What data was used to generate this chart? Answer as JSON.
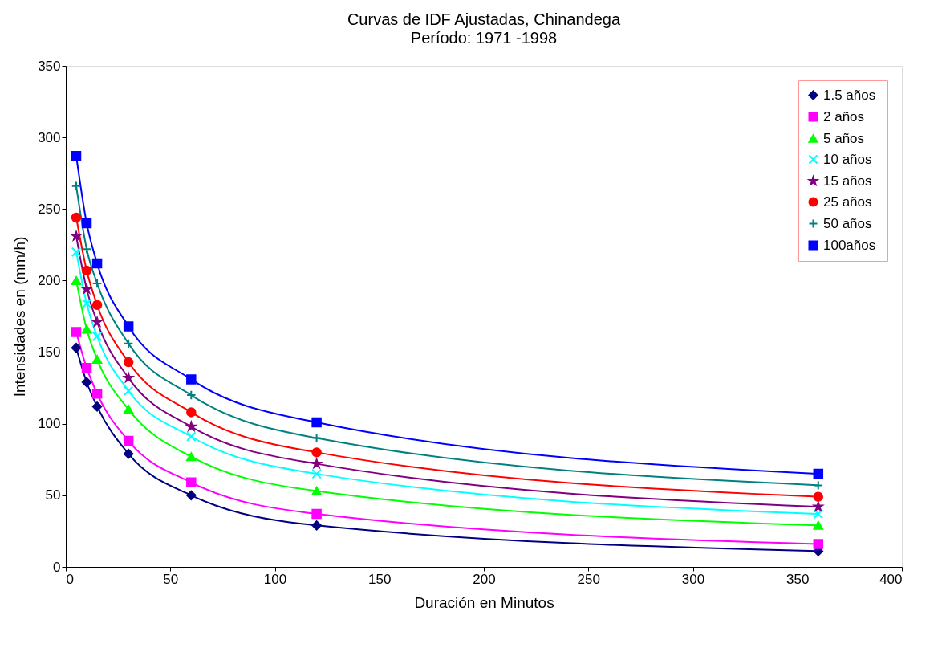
{
  "chart_data": {
    "type": "line",
    "title": "Curvas de IDF Ajustadas, Chinandega",
    "subtitle": "Período: 1971 -1998",
    "xlabel": "Duración en Minutos",
    "ylabel": "Intensidades en (mm/h)",
    "x": [
      5,
      10,
      15,
      30,
      60,
      120,
      360
    ],
    "series": [
      {
        "name": "1.5 años",
        "color": "#000080",
        "marker": "diamond",
        "values": [
          153,
          129,
          112,
          79,
          50,
          29,
          11
        ]
      },
      {
        "name": "2     años",
        "color": "#ff00ff",
        "marker": "square",
        "values": [
          164,
          139,
          121,
          88,
          59,
          37,
          16
        ]
      },
      {
        "name": "5     años",
        "color": "#00ff00",
        "marker": "triangle",
        "values": [
          200,
          166,
          145,
          110,
          77,
          53,
          29
        ]
      },
      {
        "name": "10   años",
        "color": "#00ffff",
        "marker": "cross",
        "values": [
          220,
          184,
          161,
          123,
          91,
          65,
          37
        ]
      },
      {
        "name": "15   años",
        "color": "#800080",
        "marker": "star",
        "values": [
          231,
          194,
          171,
          132,
          98,
          72,
          42
        ]
      },
      {
        "name": "25   años",
        "color": "#ff0000",
        "marker": "circle",
        "values": [
          244,
          207,
          183,
          143,
          108,
          80,
          49
        ]
      },
      {
        "name": "50   años",
        "color": "#008080",
        "marker": "plus",
        "values": [
          266,
          222,
          198,
          156,
          120,
          90,
          57
        ]
      },
      {
        "name": "100años",
        "color": "#0000ff",
        "marker": "square",
        "values": [
          287,
          240,
          212,
          168,
          131,
          101,
          65
        ]
      }
    ],
    "xlim": [
      0,
      400
    ],
    "xticks": [
      0,
      50,
      100,
      150,
      200,
      250,
      300,
      350,
      400
    ],
    "ylim": [
      0,
      350
    ],
    "yticks": [
      0,
      50,
      100,
      150,
      200,
      250,
      300,
      350
    ],
    "grid": false,
    "legend": "top right",
    "line_style": "solid"
  }
}
